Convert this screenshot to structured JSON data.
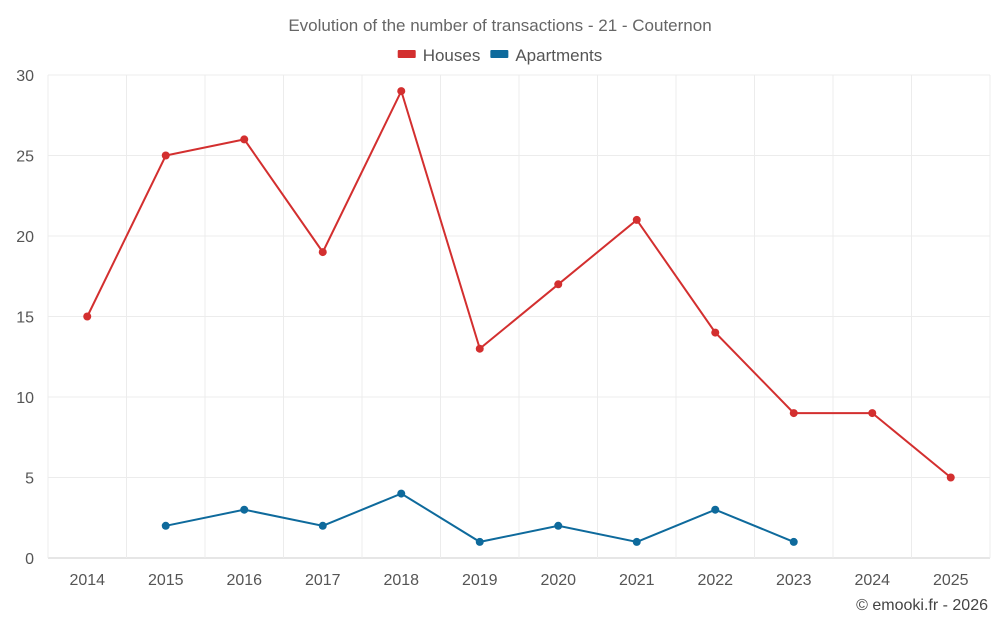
{
  "chart_data": {
    "type": "line",
    "title": "Evolution of the number of transactions - 21 - Couternon",
    "x": [
      "2014",
      "2015",
      "2016",
      "2017",
      "2018",
      "2019",
      "2020",
      "2021",
      "2022",
      "2023",
      "2024",
      "2025"
    ],
    "ylim": [
      0,
      30
    ],
    "yticks": [
      0,
      5,
      10,
      15,
      20,
      25,
      30
    ],
    "xlabel": "",
    "ylabel": "",
    "grid": true,
    "legend_position": "top-center",
    "series": [
      {
        "name": "Houses",
        "color": "#d32f2f",
        "values": [
          15,
          25,
          26,
          19,
          29,
          13,
          17,
          21,
          14,
          9,
          9,
          5
        ]
      },
      {
        "name": "Apartments",
        "color": "#0e6a9c",
        "values": [
          null,
          2,
          3,
          2,
          4,
          1,
          2,
          1,
          3,
          1,
          null,
          null
        ]
      }
    ]
  },
  "credit": "© emooki.fr - 2026"
}
